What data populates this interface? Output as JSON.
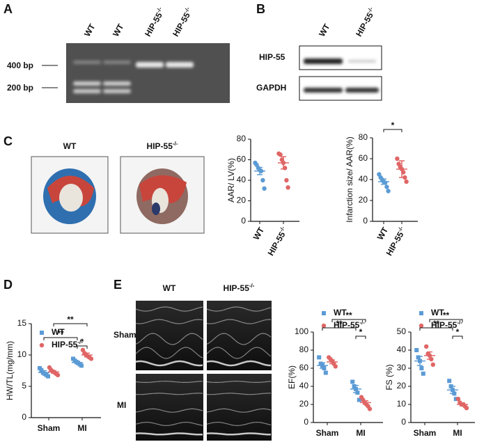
{
  "panels": {
    "a": "A",
    "b": "B",
    "c": "C",
    "d": "D",
    "e": "E"
  },
  "gel": {
    "lanes": [
      {
        "text": "WT"
      },
      {
        "text": "WT"
      },
      {
        "text": "HIP-55",
        "sup": "-/-"
      },
      {
        "text": "HIP-55",
        "sup": "-/-"
      }
    ],
    "markers": [
      "400 bp",
      "200 bp"
    ]
  },
  "western": {
    "lanes": [
      {
        "text": "WT"
      },
      {
        "text": "HIP-55",
        "sup": "-/-"
      }
    ],
    "proteins": [
      "HIP-55",
      "GAPDH"
    ]
  },
  "ttc": {
    "labels": [
      {
        "text": "WT"
      },
      {
        "text": "HIP-55",
        "sup": "-/-"
      }
    ]
  },
  "echo": {
    "columns": [
      {
        "text": "WT"
      },
      {
        "text": "HIP-55",
        "sup": "-/-"
      }
    ],
    "rows": [
      "Sham",
      "MI"
    ]
  },
  "chart_data": [
    {
      "type": "dot",
      "ylabel": "AAR/ LV(%)",
      "categories": [
        {
          "text": "WT"
        },
        {
          "text": "HIP-55",
          "sup": "-/-"
        }
      ],
      "colors": [
        "#5b9bd5",
        "#e06666"
      ],
      "values": [
        [
          57,
          55,
          52,
          50,
          49,
          40,
          32
        ],
        [
          66,
          65,
          60,
          57,
          52,
          40,
          33
        ]
      ],
      "means": [
        49,
        57
      ],
      "errors": [
        3.5,
        6
      ],
      "ylim": [
        0,
        80
      ],
      "yticks": [
        0,
        20,
        40,
        60,
        80
      ]
    },
    {
      "type": "dot",
      "ylabel": "Infarction size/ AAR(%)",
      "categories": [
        {
          "text": "WT"
        },
        {
          "text": "HIP-55",
          "sup": "-/-"
        }
      ],
      "colors": [
        "#5b9bd5",
        "#e06666"
      ],
      "values": [
        [
          45,
          42,
          40,
          38,
          37,
          33,
          29
        ],
        [
          60,
          55,
          52,
          50,
          47,
          42,
          38
        ]
      ],
      "means": [
        38,
        50
      ],
      "errors": [
        2.5,
        8
      ],
      "annotations": [
        "*"
      ],
      "ylim": [
        0,
        80
      ],
      "yticks": [
        0,
        20,
        40,
        60,
        80
      ]
    },
    {
      "type": "grouped-dot",
      "ylabel": "HW/TL(mg/mm)",
      "categories": [
        "Sham",
        "MI"
      ],
      "series": [
        {
          "name": {
            "text": "WT"
          },
          "color": "#5b9bd5",
          "marker": "square",
          "values": [
            [
              7.9,
              7.6,
              7.2,
              7.0,
              6.8,
              6.6
            ],
            [
              9.4,
              9.1,
              8.9,
              8.7,
              8.5,
              8.3
            ]
          ],
          "means": [
            7.2,
            8.8
          ],
          "errors": [
            0.3,
            0.2
          ]
        },
        {
          "name": {
            "text": "HIP-55",
            "sup": "-/-"
          },
          "color": "#e06666",
          "marker": "circle",
          "values": [
            [
              8.0,
              7.6,
              7.4,
              7.2,
              7.0,
              6.8
            ],
            [
              10.8,
              10.3,
              10.0,
              9.8,
              9.6,
              9.4
            ]
          ],
          "means": [
            7.3,
            10.0
          ],
          "errors": [
            0.2,
            0.3
          ]
        }
      ],
      "annotations": [
        "**",
        "**",
        "*"
      ],
      "ylim": [
        0,
        15
      ],
      "yticks": [
        0,
        5,
        10,
        15
      ]
    },
    {
      "type": "grouped-dot",
      "ylabel": "EF(%)",
      "categories": [
        "Sham",
        "MI"
      ],
      "series": [
        {
          "name": {
            "text": "WT"
          },
          "color": "#5b9bd5",
          "marker": "square",
          "values": [
            [
              72,
              65,
              63,
              60,
              55
            ],
            [
              45,
              40,
              37,
              33,
              25
            ]
          ],
          "means": [
            63,
            37
          ],
          "errors": [
            3,
            4
          ]
        },
        {
          "name": {
            "text": "HIP-55",
            "sup": "-/-"
          },
          "color": "#e06666",
          "marker": "circle",
          "values": [
            [
              72,
              70,
              68,
              65,
              62
            ],
            [
              28,
              25,
              22,
              20,
              18,
              15
            ]
          ],
          "means": [
            67,
            22
          ],
          "errors": [
            2,
            2
          ]
        }
      ],
      "annotations": [
        "**",
        "**",
        "*"
      ],
      "ylim": [
        0,
        100
      ],
      "yticks": [
        0,
        20,
        40,
        60,
        80,
        100
      ]
    },
    {
      "type": "grouped-dot",
      "ylabel": "FS (%)",
      "categories": [
        "Sham",
        "MI"
      ],
      "series": [
        {
          "name": {
            "text": "WT"
          },
          "color": "#5b9bd5",
          "marker": "square",
          "values": [
            [
              40,
              36,
              34,
              30,
              27
            ],
            [
              23,
              20,
              18,
              16,
              13
            ]
          ],
          "means": [
            34,
            18
          ],
          "errors": [
            2.5,
            2
          ]
        },
        {
          "name": {
            "text": "HIP-55",
            "sup": "-/-"
          },
          "color": "#e06666",
          "marker": "circle",
          "values": [
            [
              42,
              38,
              37,
              35,
              32
            ],
            [
              13,
              11,
              10,
              10,
              9,
              8
            ]
          ],
          "means": [
            37,
            10
          ],
          "errors": [
            2,
            0.8
          ]
        }
      ],
      "annotations": [
        "**",
        "**",
        "*"
      ],
      "ylim": [
        0,
        50
      ],
      "yticks": [
        0,
        10,
        20,
        30,
        40,
        50
      ]
    }
  ]
}
